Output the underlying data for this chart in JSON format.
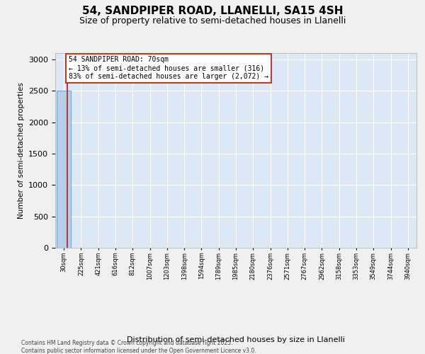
{
  "title": "54, SANDPIPER ROAD, LLANELLI, SA15 4SH",
  "subtitle": "Size of property relative to semi-detached houses in Llanelli",
  "xlabel": "Distribution of semi-detached houses by size in Llanelli",
  "ylabel": "Number of semi-detached properties",
  "property_label": "54 SANDPIPER ROAD: 70sqm",
  "pct_smaller": 13,
  "count_smaller": 316,
  "pct_larger": 83,
  "count_larger": 2072,
  "bin_labels": [
    "30sqm",
    "225sqm",
    "421sqm",
    "616sqm",
    "812sqm",
    "1007sqm",
    "1203sqm",
    "1398sqm",
    "1594sqm",
    "1789sqm",
    "1985sqm",
    "2180sqm",
    "2376sqm",
    "2571sqm",
    "2767sqm",
    "2962sqm",
    "3158sqm",
    "3353sqm",
    "3549sqm",
    "3744sqm",
    "3940sqm"
  ],
  "bar_values": [
    2500,
    5,
    0,
    0,
    0,
    0,
    0,
    0,
    0,
    0,
    0,
    0,
    0,
    0,
    0,
    0,
    0,
    0,
    0,
    0,
    0
  ],
  "bar_color": "#b8cfe8",
  "bar_edge_color": "#5b9bd5",
  "vline_color": "#c0392b",
  "box_edge_color": "#c0392b",
  "bg_color": "#dde8f5",
  "fig_bg_color": "#f0f0f0",
  "ylim": [
    0,
    3100
  ],
  "yticks": [
    0,
    500,
    1000,
    1500,
    2000,
    2500,
    3000
  ],
  "property_vline_x": 0.2,
  "footer_line1": "Contains HM Land Registry data © Crown copyright and database right 2025.",
  "footer_line2": "Contains public sector information licensed under the Open Government Licence v3.0."
}
